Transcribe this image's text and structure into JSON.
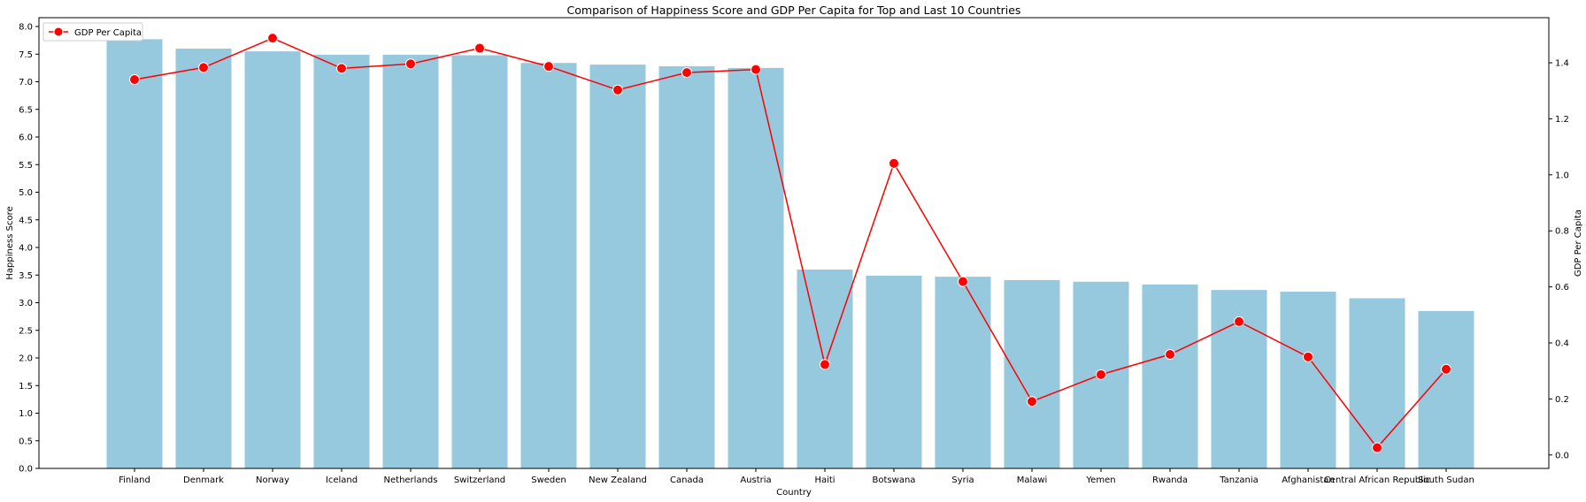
{
  "chart_data": {
    "type": "bar",
    "title": "Comparison of Happiness Score and GDP Per Capita for Top and Last 10 Countries",
    "xlabel": "Country",
    "ylabel": "Happiness Score",
    "y2label": "GDP Per Capita",
    "categories": [
      "Finland",
      "Denmark",
      "Norway",
      "Iceland",
      "Netherlands",
      "Switzerland",
      "Sweden",
      "New Zealand",
      "Canada",
      "Austria",
      "Haiti",
      "Botswana",
      "Syria",
      "Malawi",
      "Yemen",
      "Rwanda",
      "Tanzania",
      "Afghanistan",
      "Central African Republic",
      "South Sudan"
    ],
    "bar_series": {
      "name": "Happiness Score",
      "axis": "left",
      "color": "#96c8de",
      "values": [
        7.77,
        7.6,
        7.55,
        7.49,
        7.49,
        7.48,
        7.34,
        7.31,
        7.28,
        7.25,
        3.6,
        3.49,
        3.47,
        3.41,
        3.38,
        3.33,
        3.23,
        3.2,
        3.08,
        2.85
      ]
    },
    "line_series": {
      "name": "GDP Per Capita",
      "axis": "right",
      "color": "#ff0000",
      "values": [
        1.34,
        1.383,
        1.488,
        1.38,
        1.396,
        1.452,
        1.387,
        1.303,
        1.365,
        1.376,
        0.323,
        1.041,
        0.619,
        0.191,
        0.287,
        0.359,
        0.476,
        0.35,
        0.026,
        0.306
      ]
    },
    "ylim": [
      0,
      8.16
    ],
    "y_ticks": [
      "0.0",
      "0.5",
      "1.0",
      "1.5",
      "2.0",
      "2.5",
      "3.0",
      "3.5",
      "4.0",
      "4.5",
      "5.0",
      "5.5",
      "6.0",
      "6.5",
      "7.0",
      "7.5",
      "8.0"
    ],
    "y2lim": [
      -0.048,
      1.561
    ],
    "y2_ticks": [
      "0.0",
      "0.2",
      "0.4",
      "0.6",
      "0.8",
      "1.0",
      "1.2",
      "1.4"
    ],
    "legend": {
      "placement": "top-left",
      "entries": [
        "GDP Per Capita"
      ]
    },
    "grid": false
  }
}
